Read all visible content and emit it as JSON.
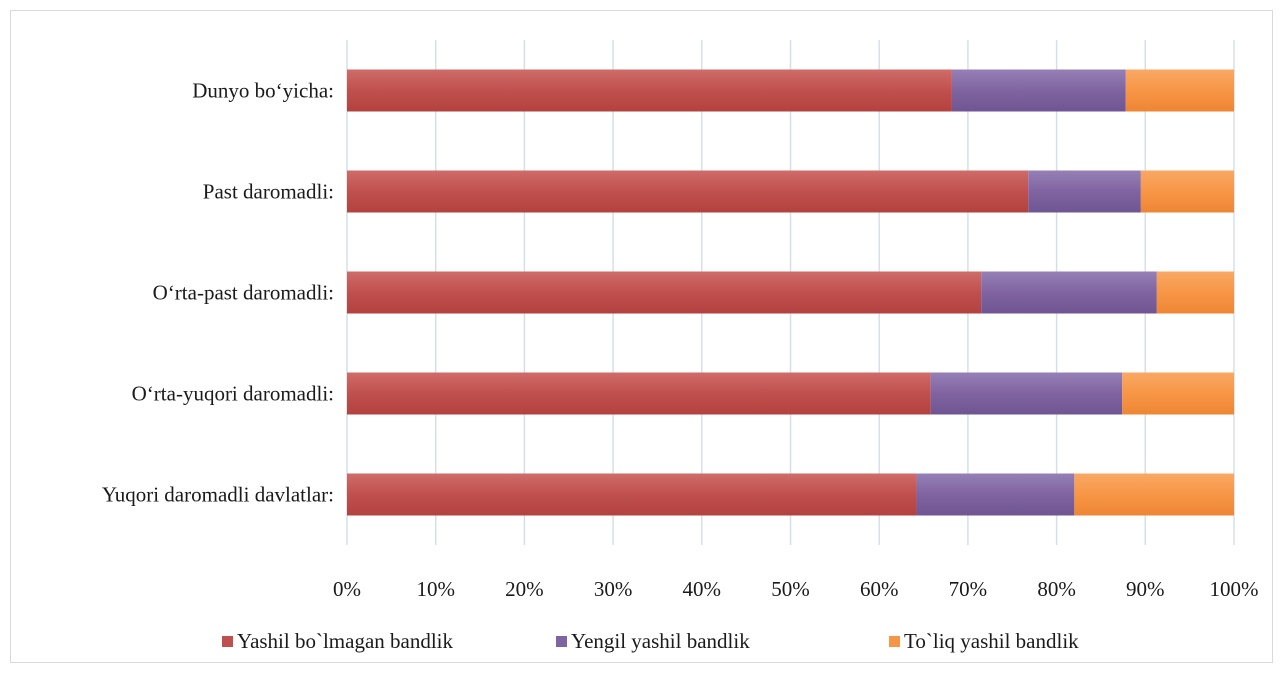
{
  "chart_data": {
    "type": "bar",
    "orientation": "horizontal",
    "stacked": "percent",
    "categories": [
      "Dunyo bo‘yicha:",
      "Past daromadli:",
      "O‘rta-past daromadli:",
      "O‘rta-yuqori daromadli:",
      "Yuqori daromadli davlatlar:"
    ],
    "series": [
      {
        "name": "Yashil bo`lmagan bandlik",
        "color": "#c0504d",
        "values": [
          68.2,
          76.8,
          71.5,
          65.8,
          64.2
        ]
      },
      {
        "name": "Yengil yashil bandlik",
        "color": "#8064a2",
        "values": [
          19.6,
          12.7,
          19.8,
          21.6,
          17.8
        ]
      },
      {
        "name": "To`liq yashil bandlik",
        "color": "#f79646",
        "values": [
          12.2,
          10.5,
          8.7,
          12.6,
          18.0
        ]
      }
    ],
    "xticks": [
      "0%",
      "10%",
      "20%",
      "30%",
      "40%",
      "50%",
      "60%",
      "70%",
      "80%",
      "90%",
      "100%"
    ],
    "xlim": [
      0,
      100
    ],
    "grid": "vertical",
    "legend": "bottom"
  }
}
